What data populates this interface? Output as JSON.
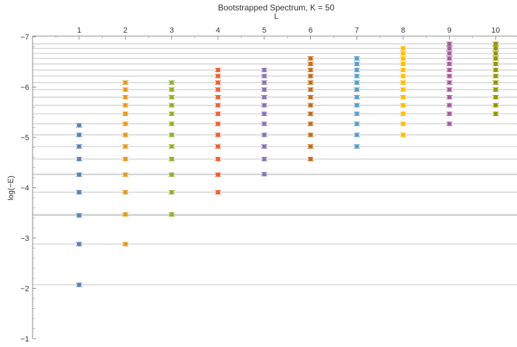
{
  "chart_data": {
    "type": "scatter",
    "title": "Bootstrapped Spectrum, K = 50",
    "xlabel": "L",
    "ylabel": "log(−E)",
    "x_axis_position": "top",
    "y_axis_inverted": true,
    "xlim": [
      0.3,
      10.5
    ],
    "ylim": [
      -1,
      -7
    ],
    "x_ticks": [
      1,
      2,
      3,
      4,
      5,
      6,
      7,
      8,
      9,
      10
    ],
    "y_ticks": [
      -1,
      -2,
      -3,
      -4,
      -5,
      -6,
      -7
    ],
    "y_tick_labels": [
      "−1",
      "−2",
      "−3",
      "−4",
      "−5",
      "−6",
      "−7"
    ],
    "grid": "horizontal lines at level values",
    "grid_levels": [
      -2.07,
      -2.88,
      -3.45,
      -3.47,
      -3.91,
      -4.26,
      -4.27,
      -4.57,
      -4.82,
      -5.05,
      -5.27,
      -5.47,
      -5.64,
      -5.8,
      -5.95,
      -6.09,
      -6.22,
      -6.34,
      -6.46,
      -6.57,
      -6.67,
      -6.77,
      -6.86
    ],
    "legend": "none",
    "series": [
      {
        "color": "#5e81b5",
        "points": [
          [
            1,
            -2.07
          ],
          [
            1,
            -2.88
          ],
          [
            1,
            -3.45
          ],
          [
            1,
            -3.91
          ],
          [
            1,
            -4.26
          ],
          [
            1,
            -4.57
          ],
          [
            1,
            -4.82
          ],
          [
            1,
            -5.05
          ],
          [
            1,
            -5.24
          ]
        ]
      },
      {
        "color": "#e19c24",
        "points": [
          [
            2,
            -2.88
          ],
          [
            2,
            -3.47
          ],
          [
            2,
            -3.91
          ],
          [
            2,
            -4.26
          ],
          [
            2,
            -4.57
          ],
          [
            2,
            -4.82
          ],
          [
            2,
            -5.05
          ],
          [
            2,
            -5.27
          ],
          [
            2,
            -5.47
          ],
          [
            2,
            -5.64
          ],
          [
            2,
            -5.8
          ],
          [
            2,
            -5.95
          ],
          [
            2,
            -6.09
          ]
        ]
      },
      {
        "color": "#8fb032",
        "points": [
          [
            3,
            -3.47
          ],
          [
            3,
            -3.91
          ],
          [
            3,
            -4.26
          ],
          [
            3,
            -4.57
          ],
          [
            3,
            -4.82
          ],
          [
            3,
            -5.05
          ],
          [
            3,
            -5.27
          ],
          [
            3,
            -5.47
          ],
          [
            3,
            -5.64
          ],
          [
            3,
            -5.8
          ],
          [
            3,
            -5.95
          ],
          [
            3,
            -6.09
          ]
        ]
      },
      {
        "color": "#eb6235",
        "points": [
          [
            4,
            -3.91
          ],
          [
            4,
            -4.26
          ],
          [
            4,
            -4.57
          ],
          [
            4,
            -4.82
          ],
          [
            4,
            -5.05
          ],
          [
            4,
            -5.27
          ],
          [
            4,
            -5.47
          ],
          [
            4,
            -5.64
          ],
          [
            4,
            -5.8
          ],
          [
            4,
            -5.95
          ],
          [
            4,
            -6.09
          ],
          [
            4,
            -6.22
          ],
          [
            4,
            -6.34
          ]
        ]
      },
      {
        "color": "#8778b3",
        "points": [
          [
            5,
            -4.27
          ],
          [
            5,
            -4.57
          ],
          [
            5,
            -4.82
          ],
          [
            5,
            -5.05
          ],
          [
            5,
            -5.27
          ],
          [
            5,
            -5.47
          ],
          [
            5,
            -5.64
          ],
          [
            5,
            -5.8
          ],
          [
            5,
            -5.95
          ],
          [
            5,
            -6.09
          ],
          [
            5,
            -6.22
          ],
          [
            5,
            -6.34
          ]
        ]
      },
      {
        "color": "#c56e1a",
        "points": [
          [
            6,
            -4.57
          ],
          [
            6,
            -4.82
          ],
          [
            6,
            -5.05
          ],
          [
            6,
            -5.27
          ],
          [
            6,
            -5.47
          ],
          [
            6,
            -5.64
          ],
          [
            6,
            -5.8
          ],
          [
            6,
            -5.95
          ],
          [
            6,
            -6.09
          ],
          [
            6,
            -6.22
          ],
          [
            6,
            -6.34
          ],
          [
            6,
            -6.46
          ],
          [
            6,
            -6.57
          ]
        ]
      },
      {
        "color": "#5d9ec7",
        "points": [
          [
            7,
            -4.82
          ],
          [
            7,
            -5.05
          ],
          [
            7,
            -5.27
          ],
          [
            7,
            -5.47
          ],
          [
            7,
            -5.64
          ],
          [
            7,
            -5.8
          ],
          [
            7,
            -5.95
          ],
          [
            7,
            -6.09
          ],
          [
            7,
            -6.22
          ],
          [
            7,
            -6.34
          ],
          [
            7,
            -6.46
          ],
          [
            7,
            -6.57
          ]
        ]
      },
      {
        "color": "#ffbf00",
        "points": [
          [
            8,
            -5.05
          ],
          [
            8,
            -5.27
          ],
          [
            8,
            -5.47
          ],
          [
            8,
            -5.64
          ],
          [
            8,
            -5.8
          ],
          [
            8,
            -5.95
          ],
          [
            8,
            -6.09
          ],
          [
            8,
            -6.22
          ],
          [
            8,
            -6.34
          ],
          [
            8,
            -6.46
          ],
          [
            8,
            -6.57
          ],
          [
            8,
            -6.67
          ],
          [
            8,
            -6.77
          ]
        ]
      },
      {
        "color": "#a5609d",
        "points": [
          [
            9,
            -5.27
          ],
          [
            9,
            -5.47
          ],
          [
            9,
            -5.64
          ],
          [
            9,
            -5.8
          ],
          [
            9,
            -5.95
          ],
          [
            9,
            -6.09
          ],
          [
            9,
            -6.22
          ],
          [
            9,
            -6.34
          ],
          [
            9,
            -6.46
          ],
          [
            9,
            -6.57
          ],
          [
            9,
            -6.67
          ],
          [
            9,
            -6.77
          ],
          [
            9,
            -6.86
          ]
        ]
      },
      {
        "color": "#929600",
        "points": [
          [
            10,
            -5.47
          ],
          [
            10,
            -5.64
          ],
          [
            10,
            -5.8
          ],
          [
            10,
            -5.95
          ],
          [
            10,
            -6.09
          ],
          [
            10,
            -6.22
          ],
          [
            10,
            -6.34
          ],
          [
            10,
            -6.46
          ],
          [
            10,
            -6.57
          ],
          [
            10,
            -6.67
          ],
          [
            10,
            -6.77
          ],
          [
            10,
            -6.86
          ]
        ]
      }
    ]
  }
}
